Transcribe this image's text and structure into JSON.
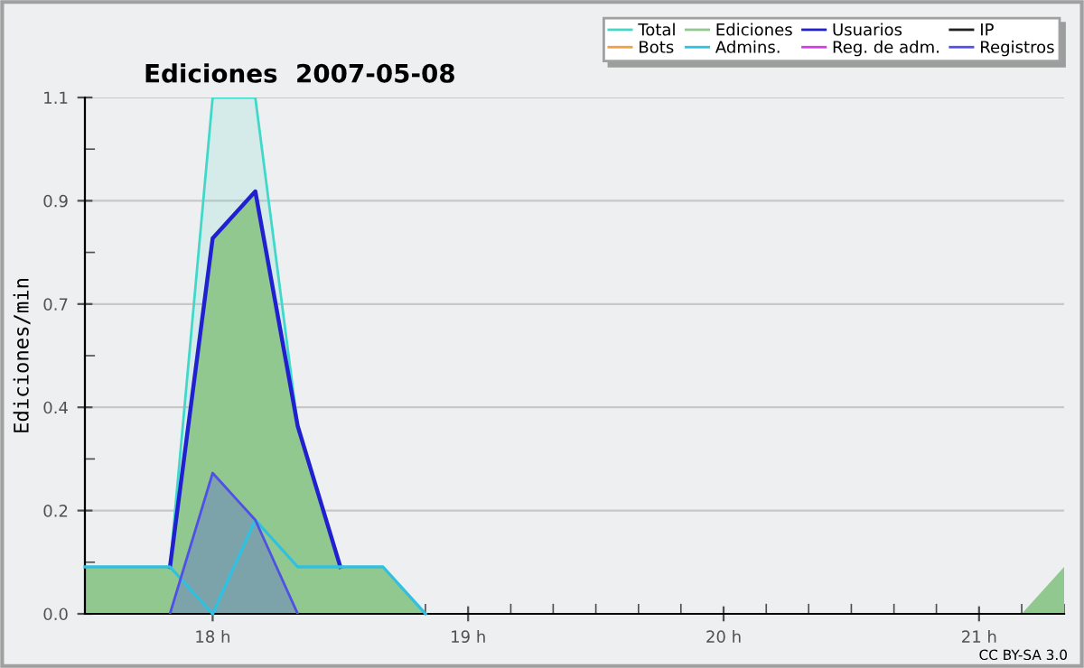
{
  "chart_data": {
    "type": "line",
    "title": "Ediciones  2007-05-08",
    "ylabel": "Ediciones/min",
    "annotations": [
      "CC BY-SA 3.0"
    ],
    "x": [
      17.5,
      17.667,
      17.833,
      18,
      18.167,
      18.333,
      18.5,
      18.667,
      18.833,
      19,
      19.167,
      19.333,
      19.5,
      19.667,
      19.833,
      20,
      20.167,
      20.333,
      20.5,
      20.667,
      20.833,
      21,
      21.167,
      21.333
    ],
    "series": [
      {
        "name": "Total",
        "type": "area",
        "color": "#40d8c8",
        "values": [
          null,
          null,
          0.1,
          1.1,
          1.1,
          0.4,
          null,
          null,
          null,
          null,
          null,
          null,
          null,
          null,
          null,
          null,
          null,
          null,
          null,
          null,
          null,
          null,
          null,
          null
        ]
      },
      {
        "name": "Ediciones",
        "type": "area",
        "color": "#90c890",
        "values": [
          0.1,
          0.1,
          0.1,
          0.8,
          0.9,
          0.4,
          0.1,
          0.1,
          0,
          null,
          null,
          null,
          null,
          null,
          null,
          null,
          null,
          null,
          null,
          null,
          null,
          null,
          0,
          0.1
        ]
      },
      {
        "name": "Usuarios",
        "color": "#2020d0",
        "values": [
          null,
          null,
          0.1,
          0.8,
          0.9,
          0.4,
          0.1,
          null,
          null,
          null,
          null,
          null,
          null,
          null,
          null,
          null,
          null,
          null,
          null,
          null,
          null,
          null,
          null,
          null
        ]
      },
      {
        "name": "IP",
        "color": "#202020",
        "values": [
          null,
          null,
          null,
          null,
          null,
          null,
          null,
          null,
          null,
          null,
          null,
          null,
          null,
          null,
          null,
          null,
          null,
          null,
          null,
          null,
          null,
          null,
          null,
          null
        ]
      },
      {
        "name": "Bots",
        "color": "#f0a040",
        "values": [
          null,
          null,
          null,
          null,
          null,
          null,
          null,
          null,
          null,
          null,
          null,
          null,
          null,
          null,
          null,
          null,
          null,
          null,
          null,
          null,
          null,
          null,
          null,
          null
        ]
      },
      {
        "name": "Admins.",
        "color": "#30c0e0",
        "values": [
          0.1,
          0.1,
          0.1,
          0,
          0.2,
          0.1,
          0.1,
          0.1,
          0,
          null,
          null,
          null,
          null,
          null,
          null,
          null,
          null,
          null,
          null,
          null,
          null,
          null,
          null,
          null
        ]
      },
      {
        "name": "Reg. de adm.",
        "color": "#d040e0",
        "values": [
          null,
          null,
          null,
          null,
          null,
          null,
          null,
          null,
          null,
          null,
          null,
          null,
          null,
          null,
          null,
          null,
          null,
          null,
          null,
          null,
          null,
          null,
          null,
          null
        ]
      },
      {
        "name": "Registros",
        "type": "area",
        "color": "#5050e8",
        "values": [
          null,
          null,
          0,
          0.3,
          0.2,
          0,
          null,
          null,
          null,
          null,
          null,
          null,
          null,
          null,
          null,
          null,
          null,
          null,
          null,
          null,
          null,
          null,
          null,
          null
        ]
      }
    ],
    "xlim": [
      17.5,
      21.333
    ],
    "xticks": [
      {
        "value": 17.5,
        "label": null
      },
      {
        "value": 17.667,
        "label": null
      },
      {
        "value": 17.833,
        "label": null
      },
      {
        "value": 18,
        "label": "18 h"
      },
      {
        "value": 18.167,
        "label": null
      },
      {
        "value": 18.333,
        "label": null
      },
      {
        "value": 18.5,
        "label": null
      },
      {
        "value": 18.667,
        "label": null
      },
      {
        "value": 18.833,
        "label": null
      },
      {
        "value": 19,
        "label": "19 h"
      },
      {
        "value": 19.167,
        "label": null
      },
      {
        "value": 19.333,
        "label": null
      },
      {
        "value": 19.5,
        "label": null
      },
      {
        "value": 19.667,
        "label": null
      },
      {
        "value": 19.833,
        "label": null
      },
      {
        "value": 20,
        "label": "20 h"
      },
      {
        "value": 20.167,
        "label": null
      },
      {
        "value": 20.333,
        "label": null
      },
      {
        "value": 20.5,
        "label": null
      },
      {
        "value": 20.667,
        "label": null
      },
      {
        "value": 20.833,
        "label": null
      },
      {
        "value": 21,
        "label": "21 h"
      },
      {
        "value": 21.167,
        "label": null
      },
      {
        "value": 21.333,
        "label": null
      }
    ],
    "ylim": [
      0,
      1.1
    ],
    "yticks": [
      {
        "value": 0,
        "label": "0.0"
      },
      {
        "value": 0.11,
        "label": null
      },
      {
        "value": 0.22,
        "label": "0.2"
      },
      {
        "value": 0.33,
        "label": null
      },
      {
        "value": 0.44,
        "label": "0.4"
      },
      {
        "value": 0.55,
        "label": null
      },
      {
        "value": 0.66,
        "label": "0.7"
      },
      {
        "value": 0.77,
        "label": null
      },
      {
        "value": 0.88,
        "label": "0.9"
      },
      {
        "value": 0.99,
        "label": null
      },
      {
        "value": 1.1,
        "label": "1.1"
      }
    ],
    "grid": "y",
    "legend": "top right"
  }
}
